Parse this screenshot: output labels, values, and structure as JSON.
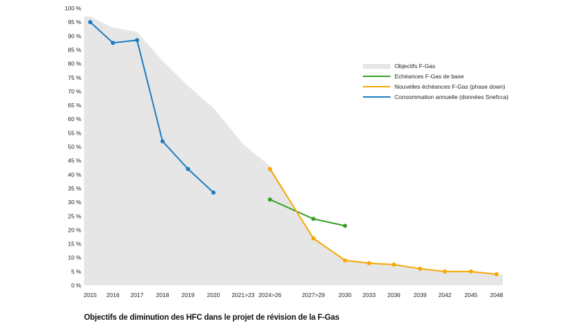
{
  "chart_data": {
    "type": "line",
    "title": "Objectifs de diminution des HFC dans le projet de révision de la F-Gas",
    "xlabel": "",
    "ylabel": "",
    "ylim": [
      0,
      100
    ],
    "yticks": [
      "0 %",
      "5 %",
      "10 %",
      "15 %",
      "20 %",
      "25 %",
      "30 %",
      "35 %",
      "40 %",
      "45 %",
      "50 %",
      "55 %",
      "60 %",
      "65 %",
      "70 %",
      "75 %",
      "80 %",
      "85 %",
      "90 %",
      "95 %",
      "100 %"
    ],
    "categories": [
      "2015",
      "2016",
      "2017",
      "2018",
      "2019",
      "2020",
      "2021>23",
      "2024>26",
      "2027>29",
      "2030",
      "2033",
      "2036",
      "2039",
      "2042",
      "2045",
      "2048"
    ],
    "legend_position": "top-right",
    "series": [
      {
        "name": "Objectifs F-Gas",
        "kind": "area",
        "color": "#e6e6e6",
        "values": [
          97,
          93,
          91.5,
          81,
          72,
          64,
          51,
          43,
          17,
          9,
          8,
          7.5,
          6,
          5,
          5,
          4
        ]
      },
      {
        "name": "Echéances F-Gas de base",
        "kind": "line",
        "color": "#3a9e2a",
        "values": [
          null,
          null,
          null,
          null,
          null,
          null,
          null,
          31,
          24,
          21.5,
          null,
          null,
          null,
          null,
          null,
          null
        ]
      },
      {
        "name": "Nouvelles échéances F-Gas (phase down)",
        "kind": "line",
        "color": "#f5a800",
        "values": [
          null,
          null,
          null,
          null,
          null,
          null,
          null,
          42,
          17,
          9,
          8,
          7.5,
          6,
          5,
          5,
          4
        ]
      },
      {
        "name": "Consommation annuelle (données Snefcca)",
        "kind": "line",
        "color": "#1a7cc4",
        "values": [
          95,
          87.5,
          88.5,
          52,
          42,
          33.5,
          null,
          null,
          null,
          null,
          null,
          null,
          null,
          null,
          null,
          null
        ]
      }
    ]
  }
}
